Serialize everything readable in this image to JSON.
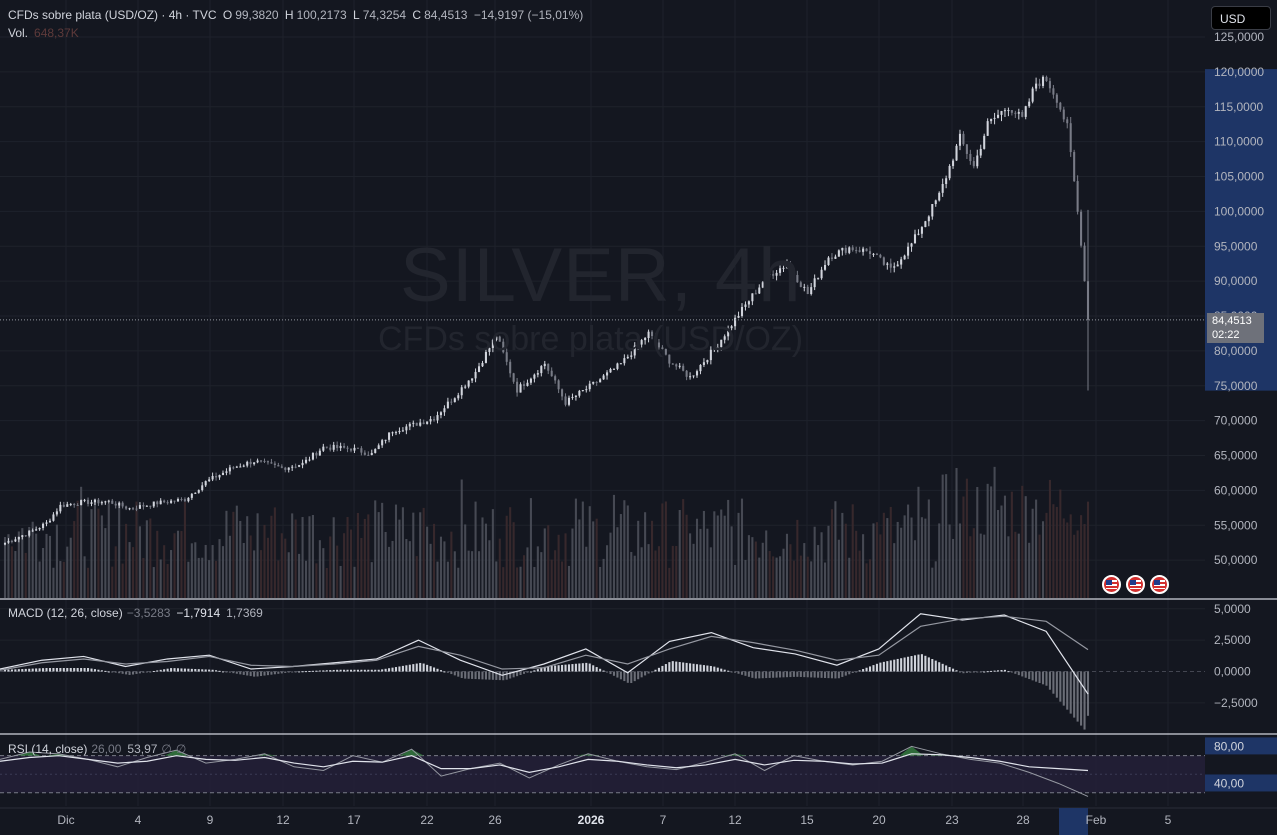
{
  "header": {
    "title": "CFDs sobre plata (USD/OZ) · 4h · TVC",
    "ohlc": [
      {
        "key": "O",
        "value": "99,3820"
      },
      {
        "key": "H",
        "value": "100,2173"
      },
      {
        "key": "L",
        "value": "74,3254"
      },
      {
        "key": "C",
        "value": "84,4513"
      }
    ],
    "change": "−14,9197 (−15,01%)",
    "volume_label": "Vol.",
    "volume_value": "648,37K"
  },
  "currency_button": "USD",
  "watermark": {
    "symbol": "SILVER, 4h",
    "description": "CFDs sobre plata (USD/OZ)"
  },
  "last_price": {
    "value": "84,4513",
    "countdown": "02:22"
  },
  "indicators": {
    "macd": {
      "label": "MACD (12, 26, close)",
      "hist": "−3,5283",
      "macd": "−1,7914",
      "signal": "1,7369"
    },
    "rsi": {
      "label": "RSI (14, close)",
      "value": "26,00",
      "ma": "53,97",
      "extra1": "∅",
      "extra2": "∅"
    }
  },
  "colors": {
    "background": "#141720",
    "up_candle": "#d1d4dc",
    "down_candle": "#787b86",
    "vol_up": "#4b4f59",
    "vol_down": "#3b2a2e",
    "axis_highlight": "#1e3566",
    "rsi_band": "#24213a",
    "rsi_overbought_fill": "#2f6b3a"
  },
  "event_markers": [
    "us-flag-icon",
    "us-flag-icon",
    "us-flag-icon"
  ],
  "chart_data": [
    {
      "type": "candlestick",
      "title": "CFDs sobre plata (USD/OZ) · 4h · TVC",
      "x_ticks": [
        "Dic",
        "4",
        "9",
        "12",
        "17",
        "22",
        "26",
        "2026",
        "7",
        "12",
        "15",
        "20",
        "23",
        "28",
        "Feb",
        "5"
      ],
      "x_highlight": "",
      "y_ticks": [
        "125,0000",
        "120,0000",
        "115,0000",
        "110,0000",
        "105,0000",
        "100,0000",
        "95,0000",
        "90,0000",
        "85,0000",
        "80,0000",
        "75,0000",
        "70,0000",
        "65,0000",
        "60,0000",
        "55,0000",
        "50,0000"
      ],
      "ylim": [
        45,
        125
      ],
      "anchors_close": [
        [
          0,
          52.5
        ],
        [
          8,
          54.2
        ],
        [
          12,
          55.3
        ],
        [
          16,
          57.8
        ],
        [
          22,
          58.3
        ],
        [
          30,
          58.4
        ],
        [
          36,
          57.4
        ],
        [
          44,
          58.2
        ],
        [
          52,
          58.7
        ],
        [
          58,
          61.2
        ],
        [
          66,
          63.3
        ],
        [
          72,
          64.2
        ],
        [
          80,
          63.2
        ],
        [
          86,
          63.8
        ],
        [
          92,
          66.2
        ],
        [
          100,
          66.0
        ],
        [
          106,
          65.2
        ],
        [
          112,
          68.6
        ],
        [
          118,
          69.4
        ],
        [
          124,
          70.4
        ],
        [
          130,
          73.5
        ],
        [
          136,
          77.0
        ],
        [
          142,
          82.2
        ],
        [
          148,
          74.4
        ],
        [
          156,
          78.2
        ],
        [
          162,
          72.6
        ],
        [
          170,
          75.2
        ],
        [
          178,
          78.1
        ],
        [
          186,
          82.5
        ],
        [
          192,
          78.6
        ],
        [
          198,
          76.2
        ],
        [
          205,
          80.3
        ],
        [
          212,
          85.2
        ],
        [
          220,
          90.6
        ],
        [
          226,
          92.5
        ],
        [
          232,
          88.2
        ],
        [
          238,
          93.5
        ],
        [
          244,
          94.8
        ],
        [
          250,
          94.2
        ],
        [
          256,
          91.6
        ],
        [
          262,
          95.3
        ],
        [
          270,
          102.3
        ],
        [
          276,
          110.5
        ],
        [
          280,
          106.4
        ],
        [
          284,
          112.5
        ],
        [
          290,
          115.1
        ],
        [
          294,
          113.2
        ],
        [
          298,
          118.4
        ],
        [
          301,
          118.9
        ],
        [
          304,
          116.2
        ],
        [
          307,
          112.0
        ],
        [
          309,
          104.2
        ],
        [
          311,
          95.6
        ],
        [
          313,
          84.45
        ]
      ],
      "last_close": "84,4513",
      "volume_series_name": "Vol."
    },
    {
      "type": "line",
      "name": "MACD (12, 26, close)",
      "y_ticks": [
        "5,0000",
        "2,5000",
        "0,0000",
        "−2,5000"
      ],
      "ylim": [
        -4.5,
        5.3
      ],
      "series": [
        {
          "name": "MACD",
          "values": [
            0.2,
            0.9,
            1.2,
            0.4,
            1.0,
            1.3,
            0.2,
            0.4,
            0.7,
            1.0,
            2.5,
            0.9,
            -0.3,
            0.6,
            1.8,
            -0.1,
            2.4,
            3.1,
            1.9,
            1.4,
            0.5,
            1.8,
            4.6,
            4.1,
            4.5,
            3.2,
            -1.79
          ]
        },
        {
          "name": "Signal",
          "values": [
            0.1,
            0.7,
            1.0,
            0.6,
            0.8,
            1.2,
            0.5,
            0.4,
            0.6,
            0.9,
            2.0,
            1.3,
            0.2,
            0.3,
            1.3,
            0.6,
            1.8,
            2.8,
            2.3,
            1.7,
            0.9,
            1.3,
            3.6,
            4.2,
            4.4,
            4.0,
            1.74
          ]
        }
      ],
      "histogram_last": -3.5283
    },
    {
      "type": "line",
      "name": "RSI (14, close)",
      "y_ticks": [
        "80,00",
        "40,00"
      ],
      "ylim": [
        20,
        88
      ],
      "bands": [
        70,
        30
      ],
      "series": [
        {
          "name": "RSI",
          "values": [
            66,
            74,
            72,
            66,
            58,
            68,
            76,
            62,
            66,
            72,
            58,
            54,
            70,
            63,
            77,
            48,
            56,
            62,
            46,
            60,
            72,
            64,
            58,
            55,
            63,
            72,
            54,
            70,
            64,
            60,
            64,
            80,
            72,
            66,
            62,
            52,
            40,
            26
          ]
        },
        {
          "name": "RSI MA",
          "values": [
            64,
            68,
            70,
            66,
            62,
            64,
            70,
            66,
            65,
            68,
            62,
            58,
            64,
            63,
            70,
            56,
            56,
            60,
            52,
            58,
            66,
            64,
            60,
            57,
            60,
            66,
            60,
            65,
            64,
            61,
            62,
            72,
            71,
            68,
            64,
            58,
            56,
            53.97
          ]
        }
      ]
    }
  ]
}
